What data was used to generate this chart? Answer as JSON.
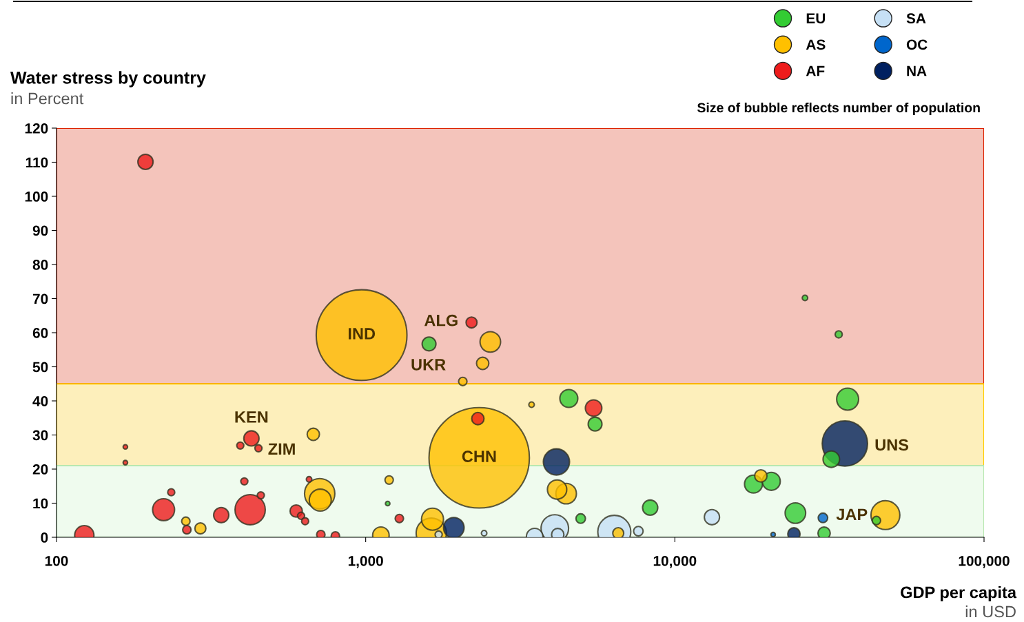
{
  "chart_data": {
    "type": "bubble",
    "title": "Water stress by country",
    "subtitle": "in Percent",
    "xlabel": "GDP per capita",
    "annotations": [
      "in USD",
      "Size of bubble reflects number of population",
      {
        "text": "IND",
        "x": 970,
        "y": 59.3
      },
      {
        "text": "CHN",
        "x": 2329,
        "y": 23.3
      },
      {
        "text": "ALG",
        "x": 2200,
        "y": 63
      },
      {
        "text": "UKR",
        "x": 1603,
        "y": 56.7
      },
      {
        "text": "KEN",
        "x": 427,
        "y": 29
      },
      {
        "text": "ZIM",
        "x": 450,
        "y": 26.1
      },
      {
        "text": "UNS",
        "x": 35480,
        "y": 27.5
      },
      {
        "text": "JAP",
        "x": 30130,
        "y": 5.7
      }
    ],
    "log": "x",
    "xlim": [
      100,
      100000
    ],
    "xticks": [
      {
        "value": 100,
        "label": "100"
      },
      {
        "value": 1000,
        "label": "1,000"
      },
      {
        "value": 10000,
        "label": "10,000"
      },
      {
        "value": 100000,
        "label": "100,000"
      }
    ],
    "ylim": [
      0,
      120
    ],
    "yticks": [
      0,
      10,
      20,
      30,
      40,
      50,
      60,
      70,
      80,
      90,
      100,
      110,
      120
    ],
    "grid": false,
    "legend": "top right",
    "marker": "circle",
    "bands": [
      {
        "axis": "y",
        "from": 45,
        "to": 120,
        "color": "#f4c4bb"
      },
      {
        "axis": "y",
        "from": 21,
        "to": 45,
        "color": "#fdefbb"
      },
      {
        "axis": "y",
        "from": 0,
        "to": 21,
        "color": "#effbee"
      }
    ],
    "series": [
      {
        "name": "EU",
        "color": "#33cc33",
        "x": [
          1603,
          26360,
          33880,
          4540,
          5520,
          36210,
          32060,
          17960,
          20510,
          24540,
          30390,
          44870,
          8320,
          4960,
          1178
        ],
        "values": [
          56.7,
          70.2,
          59.5,
          40.7,
          33.2,
          40.5,
          22.9,
          15.6,
          16.4,
          7.1,
          1.2,
          4.9,
          8.7,
          5.5,
          9.9
        ],
        "sizes": [
          0.019,
          0.003,
          0.005,
          0.032,
          0.019,
          0.048,
          0.027,
          0.032,
          0.032,
          0.042,
          0.015,
          0.007,
          0.023,
          0.009,
          0.002
        ]
      },
      {
        "name": "AS",
        "color": "#ffc000",
        "x": [
          970,
          2329,
          2530,
          2390,
          2061,
          677,
          3440,
          710,
          713,
          262,
          292,
          1191,
          4160,
          4450,
          1645,
          1630,
          1120,
          6560,
          18970,
          47970
        ],
        "values": [
          59.3,
          23.3,
          57.3,
          51,
          45.7,
          30.2,
          38.9,
          12.8,
          10.9,
          4.7,
          2.6,
          16.8,
          14,
          12.8,
          5.3,
          1.2,
          0.6,
          1.2,
          18,
          6.5
        ],
        "sizes": [
          0.817,
          1,
          0.042,
          0.015,
          0.007,
          0.015,
          0.003,
          0.091,
          0.048,
          0.007,
          0.012,
          0.007,
          0.037,
          0.042,
          0.048,
          0.091,
          0.027,
          0.012,
          0.015,
          0.083
        ]
      },
      {
        "name": "AF",
        "color": "#ee1c1c",
        "x": [
          194,
          2200,
          2306,
          5460,
          427,
          393,
          450,
          167,
          167,
          123,
          222,
          235,
          264,
          341,
          405,
          423,
          458,
          596,
          656,
          1285,
          716,
          798,
          618,
          637
        ],
        "values": [
          110.1,
          63,
          34.8,
          37.9,
          29,
          26.9,
          26.1,
          26.5,
          21.9,
          0.6,
          8.1,
          13.2,
          2.2,
          6.5,
          16.4,
          8.1,
          12.3,
          7.7,
          17,
          5.5,
          0.8,
          0.4,
          6.3,
          4.7
        ],
        "sizes": [
          0.023,
          0.012,
          0.015,
          0.027,
          0.023,
          0.005,
          0.005,
          0.002,
          0.002,
          0.037,
          0.048,
          0.005,
          0.007,
          0.023,
          0.005,
          0.091,
          0.005,
          0.015,
          0.003,
          0.007,
          0.007,
          0.007,
          0.005,
          0.005
        ]
      },
      {
        "name": "SA",
        "color": "#c6e0f5",
        "x": [
          4090,
          6370,
          3520,
          4180,
          13180,
          7620,
          1722,
          2416
        ],
        "values": [
          2.6,
          1.6,
          0.2,
          0.8,
          5.9,
          1.8,
          0.8,
          1.2
        ],
        "sizes": [
          0.075,
          0.108,
          0.027,
          0.015,
          0.023,
          0.009,
          0.005,
          0.003
        ]
      },
      {
        "name": "OC",
        "color": "#0066cc",
        "x": [
          30130,
          20790
        ],
        "values": [
          5.7,
          0.8
        ],
        "sizes": [
          0.009,
          0.002
        ]
      },
      {
        "name": "NA",
        "color": "#002060",
        "x": [
          35480,
          4140,
          1928,
          24270
        ],
        "values": [
          27.5,
          22.1,
          2.8,
          1
        ],
        "sizes": [
          0.204,
          0.068,
          0.042,
          0.015
        ]
      }
    ]
  }
}
